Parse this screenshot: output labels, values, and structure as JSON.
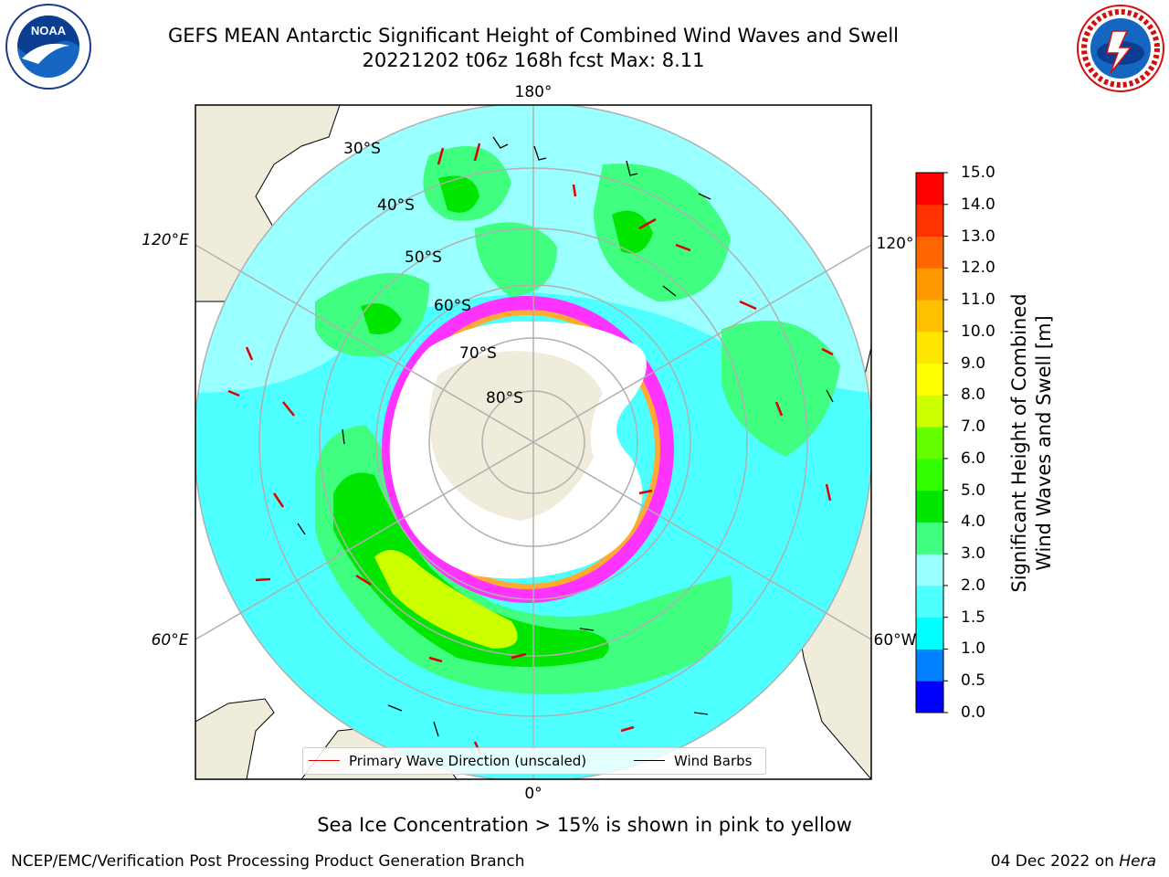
{
  "title": {
    "line1": "GEFS MEAN Antarctic Significant Height of Combined Wind Waves and Swell",
    "line2": "20221202 t06z 168h fcst   Max: 8.11"
  },
  "logos": {
    "left": {
      "name": "NOAA",
      "text": "NOAA"
    },
    "right": {
      "name": "National Weather Service"
    }
  },
  "map": {
    "projection": "south polar stereographic",
    "longitude_labels": {
      "top": "180°",
      "bottom": "0°",
      "upper_left": "120°E",
      "lower_left": "60°E",
      "upper_right": "120°",
      "lower_right": "60°W"
    },
    "latitude_labels": [
      "30°S",
      "40°S",
      "50°S",
      "60°S",
      "70°S",
      "80°S"
    ],
    "colors": {
      "ocean_low": "#4dffff",
      "ocean_mid": "#99ffff",
      "wave_3_4": "#40ff80",
      "wave_4_5": "#00e600",
      "wave_6_7": "#ccff00",
      "land": "#efecdc",
      "ice_high": "#ff33ff",
      "ice_low": "#ffaa33",
      "wave_direction": "#e00000"
    }
  },
  "colorbar": {
    "label_line1": "Significant Height of Combined",
    "label_line2": "Wind Waves and Swell [m]",
    "ticks": [
      "0.0",
      "0.5",
      "1.0",
      "1.5",
      "2.0",
      "3.0",
      "4.0",
      "5.0",
      "6.0",
      "7.0",
      "8.0",
      "9.0",
      "10.0",
      "11.0",
      "12.0",
      "13.0",
      "14.0",
      "15.0"
    ],
    "colors": [
      "#0000ff",
      "#0080ff",
      "#00ffff",
      "#4dffff",
      "#99ffff",
      "#40ff80",
      "#00e600",
      "#33ff00",
      "#66ff00",
      "#ccff00",
      "#ffff00",
      "#ffe600",
      "#ffc000",
      "#ff9900",
      "#ff6600",
      "#ff3300",
      "#ff0000"
    ]
  },
  "legend": {
    "primary_wave": "Primary Wave Direction (unscaled)",
    "wind_barbs": "Wind Barbs"
  },
  "caption": "Sea Ice Concentration > 15% is shown in pink to yellow",
  "footer": {
    "left": "NCEP/EMC/Verification Post Processing Product Generation Branch",
    "right_prefix": "04 Dec 2022 on",
    "right_host": "Hera"
  }
}
